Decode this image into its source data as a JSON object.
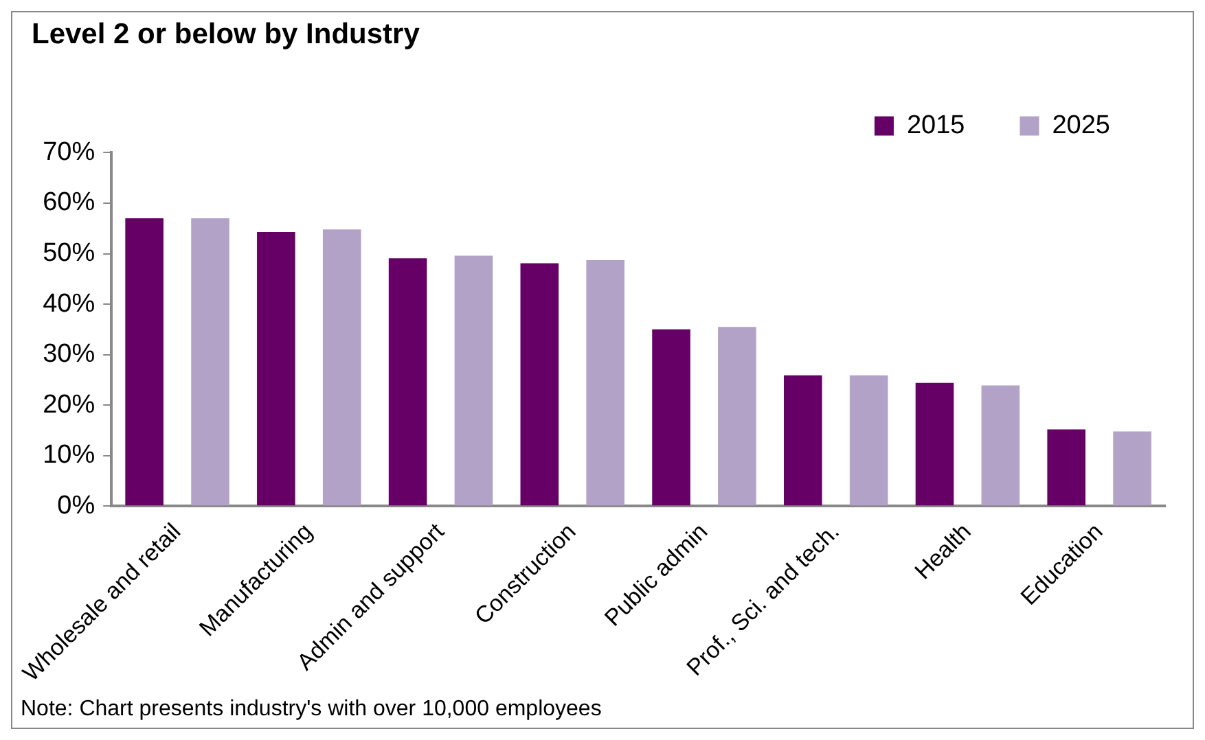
{
  "chart_data": {
    "type": "bar",
    "title": "Level 2 or below by Industry",
    "categories": [
      "Wholesale and retail",
      "Manufacturing",
      "Admin and support",
      "Construction",
      "Public admin",
      "Prof., Sci. and tech.",
      "Health",
      "Education"
    ],
    "series": [
      {
        "name": "2015",
        "color": "#660066",
        "values": [
          57,
          54.3,
          49.1,
          48.1,
          35,
          25.9,
          24.4,
          15.2
        ]
      },
      {
        "name": "2025",
        "color": "#b3a2c7",
        "values": [
          57,
          54.8,
          49.6,
          48.7,
          35.5,
          25.9,
          23.9,
          14.8
        ]
      }
    ],
    "ylim": [
      0,
      70
    ],
    "yticks": [
      {
        "value": 0,
        "label": "0%"
      },
      {
        "value": 10,
        "label": "10%"
      },
      {
        "value": 20,
        "label": "20%"
      },
      {
        "value": 30,
        "label": "30%"
      },
      {
        "value": 40,
        "label": "40%"
      },
      {
        "value": 50,
        "label": "50%"
      },
      {
        "value": 60,
        "label": "60%"
      },
      {
        "value": 70,
        "label": "70%"
      }
    ],
    "grid": false,
    "legend": "top right",
    "marker": "square",
    "annotations": [
      "Note: Chart presents industry's with over 10,000 employees"
    ]
  }
}
